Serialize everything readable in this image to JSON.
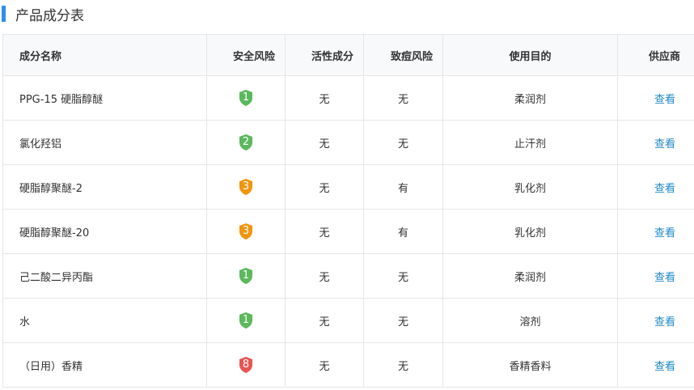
{
  "title": "产品成分表",
  "headers": [
    "成分名称",
    "安全风险",
    "活性成分",
    "致痘风险",
    "使用目的",
    "供应商"
  ],
  "colors": {
    "accent": "#2f8fe6",
    "risk_low": "#5cb85c",
    "risk_mid": "#f0960e",
    "risk_high": "#e85454",
    "link": "#1e88c7"
  },
  "rows": [
    {
      "name": "PPG-15 硬脂醇醚",
      "risk": "1",
      "active": "无",
      "acne": "无",
      "purpose": "柔润剂",
      "supplier": "查看"
    },
    {
      "name": "氯化羟铝",
      "risk": "2",
      "active": "无",
      "acne": "无",
      "purpose": "止汗剂",
      "supplier": "查看"
    },
    {
      "name": "硬脂醇聚醚-2",
      "risk": "3",
      "active": "无",
      "acne": "有",
      "purpose": "乳化剂",
      "supplier": "查看"
    },
    {
      "name": "硬脂醇聚醚-20",
      "risk": "3",
      "active": "无",
      "acne": "有",
      "purpose": "乳化剂",
      "supplier": "查看"
    },
    {
      "name": "己二酸二异丙酯",
      "risk": "1",
      "active": "无",
      "acne": "无",
      "purpose": "柔润剂",
      "supplier": "查看"
    },
    {
      "name": "水",
      "risk": "1",
      "active": "无",
      "acne": "无",
      "purpose": "溶剂",
      "supplier": "查看"
    },
    {
      "name": "（日用）香精",
      "risk": "8",
      "active": "无",
      "acne": "无",
      "purpose": "香精香料",
      "supplier": "查看"
    }
  ]
}
